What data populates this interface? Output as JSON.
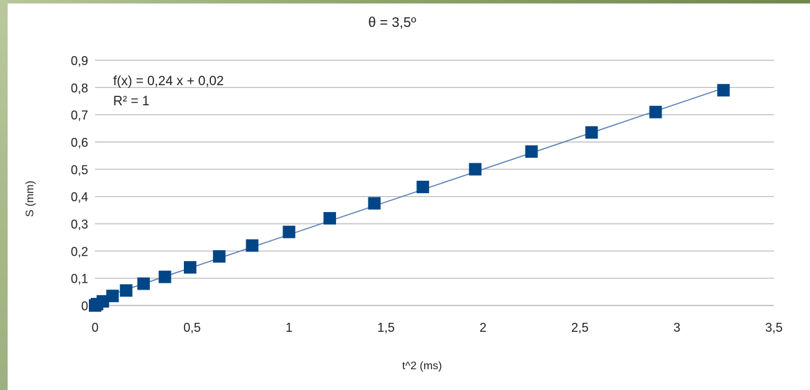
{
  "chart_data": {
    "type": "scatter",
    "title": "θ = 3,5º",
    "xlabel": "t^2 (ms)",
    "ylabel": "S (mm)",
    "xlim": [
      0,
      3.5
    ],
    "ylim": [
      0,
      0.9
    ],
    "x_ticks": [
      "0",
      "0,5",
      "1",
      "1,5",
      "2",
      "2,5",
      "3",
      "3,5"
    ],
    "y_ticks": [
      "0",
      "0,1",
      "0,2",
      "0,3",
      "0,4",
      "0,5",
      "0,6",
      "0,7",
      "0,8",
      "0,9"
    ],
    "grid": "horizontal",
    "trendline": {
      "type": "linear",
      "slope": 0.24,
      "intercept": 0.02,
      "equation_text": "f(x) = 0,24 x + 0,02",
      "r2_text": "R² = 1",
      "color": "#5b7fb3"
    },
    "marker": {
      "shape": "square",
      "color": "#004586"
    },
    "series": [
      {
        "x": [
          0,
          0.01,
          0.04,
          0.09,
          0.16,
          0.25,
          0.36,
          0.49,
          0.64,
          0.81,
          1.0,
          1.21,
          1.44,
          1.69,
          1.96,
          2.25,
          2.56,
          2.89,
          3.24
        ],
        "y": [
          0.0,
          0.005,
          0.015,
          0.035,
          0.055,
          0.08,
          0.105,
          0.14,
          0.18,
          0.22,
          0.27,
          0.32,
          0.375,
          0.435,
          0.5,
          0.565,
          0.635,
          0.71,
          0.79
        ]
      }
    ]
  }
}
